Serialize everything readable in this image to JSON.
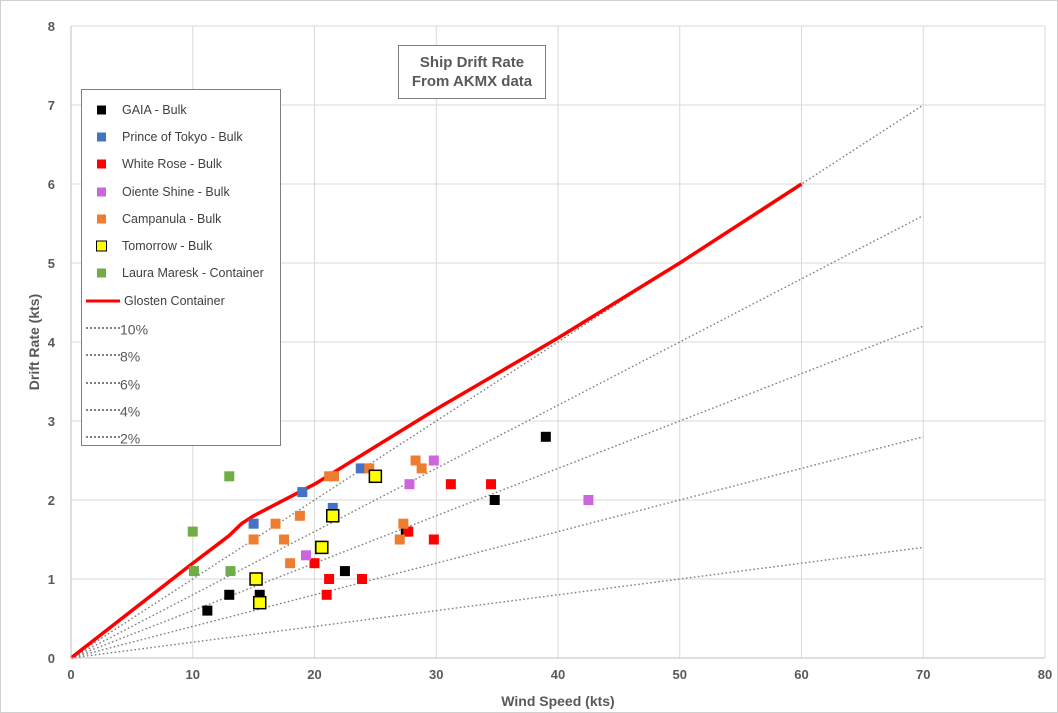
{
  "chart_data": {
    "type": "scatter",
    "title_lines": [
      "Ship Drift Rate",
      "From AKMX data"
    ],
    "xlabel": "Wind Speed (kts)",
    "ylabel": "Drift Rate (kts)",
    "xlim": [
      0,
      80
    ],
    "ylim": [
      0,
      8
    ],
    "xticks": [
      0,
      10,
      20,
      30,
      40,
      50,
      60,
      70,
      80
    ],
    "yticks": [
      0,
      1,
      2,
      3,
      4,
      5,
      6,
      7,
      8
    ],
    "grid": true,
    "legend_position": "top-left",
    "series": [
      {
        "name": "GAIA - Bulk",
        "kind": "marker",
        "color": "#000000",
        "points": [
          [
            11.2,
            0.6
          ],
          [
            13,
            0.8
          ],
          [
            15.5,
            0.8
          ],
          [
            22.5,
            1.1
          ],
          [
            27.5,
            1.6
          ],
          [
            34.8,
            2.0
          ],
          [
            39,
            2.8
          ]
        ]
      },
      {
        "name": "Prince of Tokyo - Bulk",
        "kind": "marker",
        "color": "#4472C4",
        "points": [
          [
            15,
            1.7
          ],
          [
            19,
            2.1
          ],
          [
            21.5,
            1.9
          ],
          [
            23.8,
            2.4
          ]
        ]
      },
      {
        "name": "White Rose - Bulk",
        "kind": "marker",
        "color": "#FF0000",
        "points": [
          [
            20,
            1.2
          ],
          [
            21,
            0.8
          ],
          [
            21.2,
            1.0
          ],
          [
            23.9,
            1.0
          ],
          [
            27.7,
            1.6
          ],
          [
            29.8,
            1.5
          ],
          [
            31.2,
            2.2
          ],
          [
            34.5,
            2.2
          ]
        ]
      },
      {
        "name": "Oiente Shine - Bulk",
        "kind": "marker",
        "color": "#CC66DD",
        "points": [
          [
            19.3,
            1.3
          ],
          [
            27.8,
            2.2
          ],
          [
            29.8,
            2.5
          ],
          [
            42.5,
            2.0
          ]
        ]
      },
      {
        "name": "Campanula - Bulk",
        "kind": "marker",
        "color": "#ED7D31",
        "points": [
          [
            15,
            1.5
          ],
          [
            16.8,
            1.7
          ],
          [
            17.5,
            1.5
          ],
          [
            18,
            1.2
          ],
          [
            18.8,
            1.8
          ],
          [
            21.2,
            2.3
          ],
          [
            21.6,
            2.3
          ],
          [
            24.5,
            2.4
          ],
          [
            27,
            1.5
          ],
          [
            27.3,
            1.7
          ],
          [
            28.3,
            2.5
          ],
          [
            28.8,
            2.4
          ]
        ]
      },
      {
        "name": "Tomorrow - Bulk",
        "kind": "marker",
        "color": "#FFFF00",
        "border": "#000000",
        "points": [
          [
            15.2,
            1.0
          ],
          [
            15.5,
            0.7
          ],
          [
            20.6,
            1.4
          ],
          [
            21.5,
            1.8
          ],
          [
            25,
            2.3
          ]
        ]
      },
      {
        "name": "Laura Maresk - Container",
        "kind": "marker",
        "color": "#70AD47",
        "points": [
          [
            10,
            1.6
          ],
          [
            10.1,
            1.1
          ],
          [
            13,
            2.3
          ],
          [
            13.1,
            1.1
          ]
        ]
      },
      {
        "name": "Glosten Container",
        "kind": "line",
        "color": "#FF0000",
        "points": [
          [
            0,
            0
          ],
          [
            10,
            1.2
          ],
          [
            13,
            1.55
          ],
          [
            14,
            1.7
          ],
          [
            15,
            1.8
          ],
          [
            20,
            2.2
          ],
          [
            30,
            3.15
          ],
          [
            40,
            4.05
          ],
          [
            50,
            5.0
          ],
          [
            60,
            6.0
          ]
        ]
      },
      {
        "name": "10%",
        "kind": "dotted",
        "points": [
          [
            0,
            0
          ],
          [
            70,
            7.0
          ]
        ]
      },
      {
        "name": "8%",
        "kind": "dotted",
        "points": [
          [
            0,
            0
          ],
          [
            70,
            5.6
          ]
        ]
      },
      {
        "name": "6%",
        "kind": "dotted",
        "points": [
          [
            0,
            0
          ],
          [
            70,
            4.2
          ]
        ]
      },
      {
        "name": "4%",
        "kind": "dotted",
        "points": [
          [
            0,
            0
          ],
          [
            70,
            2.8
          ]
        ]
      },
      {
        "name": "2%",
        "kind": "dotted",
        "points": [
          [
            0,
            0
          ],
          [
            70,
            1.4
          ]
        ]
      }
    ]
  }
}
